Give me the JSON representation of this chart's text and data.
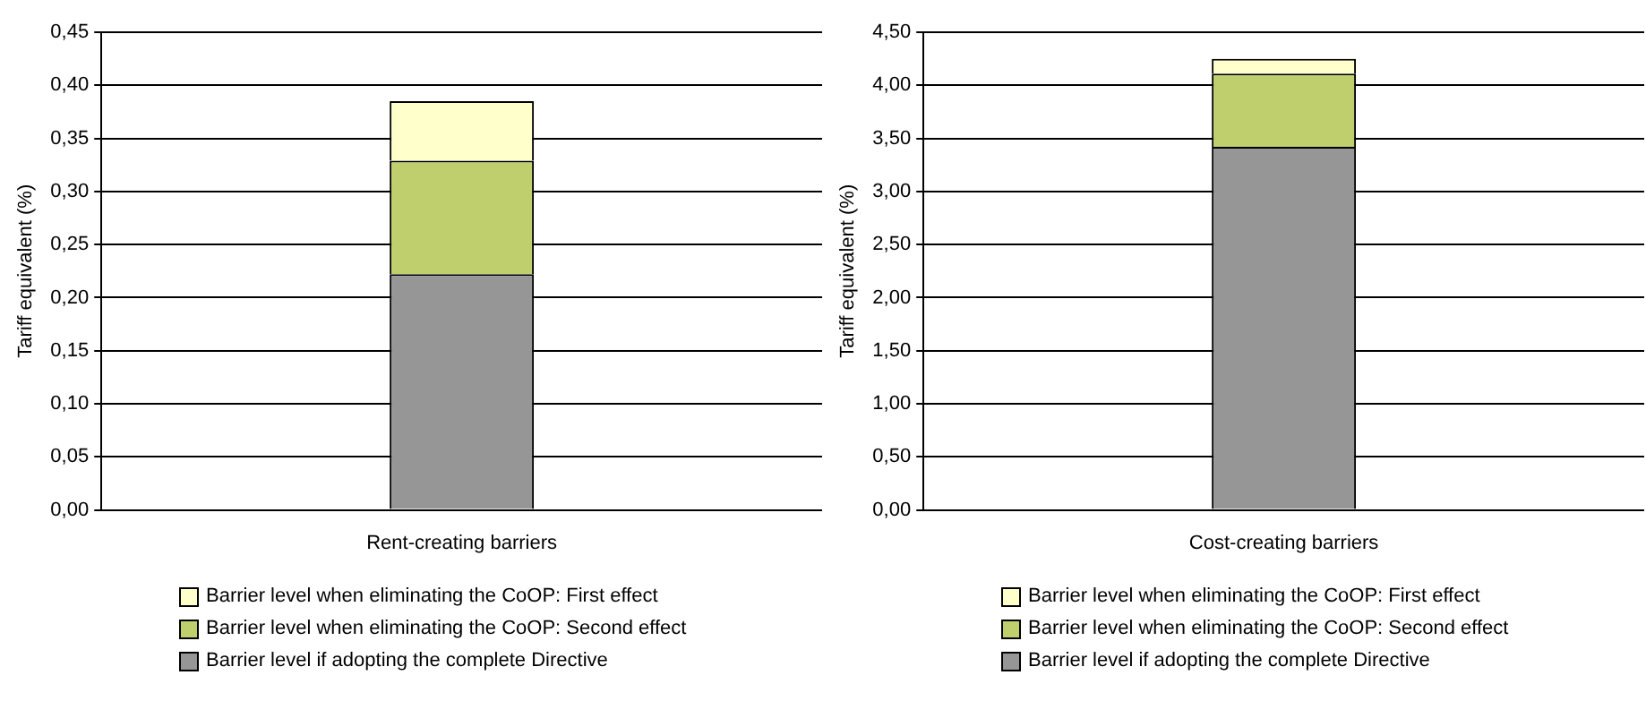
{
  "chart_data": [
    {
      "type": "bar",
      "stacked": true,
      "ylabel": "Tariff equivalent (%)",
      "categories": [
        "Rent-creating barriers"
      ],
      "series": [
        {
          "name": "Barrier level if adopting the complete Directive",
          "color": "#969696",
          "values": [
            0.222
          ]
        },
        {
          "name": "Barrier level when eliminating the CoOP: Second effect",
          "color": "#c0cf6e",
          "values": [
            0.107
          ]
        },
        {
          "name": "Barrier level when eliminating the CoOP: First effect",
          "color": "#ffffcc",
          "values": [
            0.056
          ]
        }
      ],
      "ylim": [
        0,
        0.45
      ],
      "yticks": [
        {
          "value": 0,
          "label": "0,00"
        },
        {
          "value": 0.05,
          "label": "0,05"
        },
        {
          "value": 0.1,
          "label": "0,10"
        },
        {
          "value": 0.15,
          "label": "0,15"
        },
        {
          "value": 0.2,
          "label": "0,20"
        },
        {
          "value": 0.25,
          "label": "0,25"
        },
        {
          "value": 0.3,
          "label": "0,30"
        },
        {
          "value": 0.35,
          "label": "0,35"
        },
        {
          "value": 0.4,
          "label": "0,40"
        },
        {
          "value": 0.45,
          "label": "0,45"
        }
      ],
      "grid": "y",
      "legend": "bottom"
    },
    {
      "type": "bar",
      "stacked": true,
      "ylabel": "Tariff equivalent (%)",
      "categories": [
        "Cost-creating barriers"
      ],
      "series": [
        {
          "name": "Barrier level if adopting the complete Directive",
          "color": "#969696",
          "values": [
            3.42
          ]
        },
        {
          "name": "Barrier level when eliminating the CoOP: Second effect",
          "color": "#c0cf6e",
          "values": [
            0.69
          ]
        },
        {
          "name": "Barrier level when eliminating the CoOP: First effect",
          "color": "#ffffcc",
          "values": [
            0.14
          ]
        }
      ],
      "ylim": [
        0,
        4.5
      ],
      "yticks": [
        {
          "value": 0,
          "label": "0,00"
        },
        {
          "value": 0.5,
          "label": "0,50"
        },
        {
          "value": 1,
          "label": "1,00"
        },
        {
          "value": 1.5,
          "label": "1,50"
        },
        {
          "value": 2,
          "label": "2,00"
        },
        {
          "value": 2.5,
          "label": "2,50"
        },
        {
          "value": 3,
          "label": "3,00"
        },
        {
          "value": 3.5,
          "label": "3,50"
        },
        {
          "value": 4,
          "label": "4,00"
        },
        {
          "value": 4.5,
          "label": "4,50"
        }
      ],
      "grid": "y",
      "legend": "bottom"
    }
  ]
}
